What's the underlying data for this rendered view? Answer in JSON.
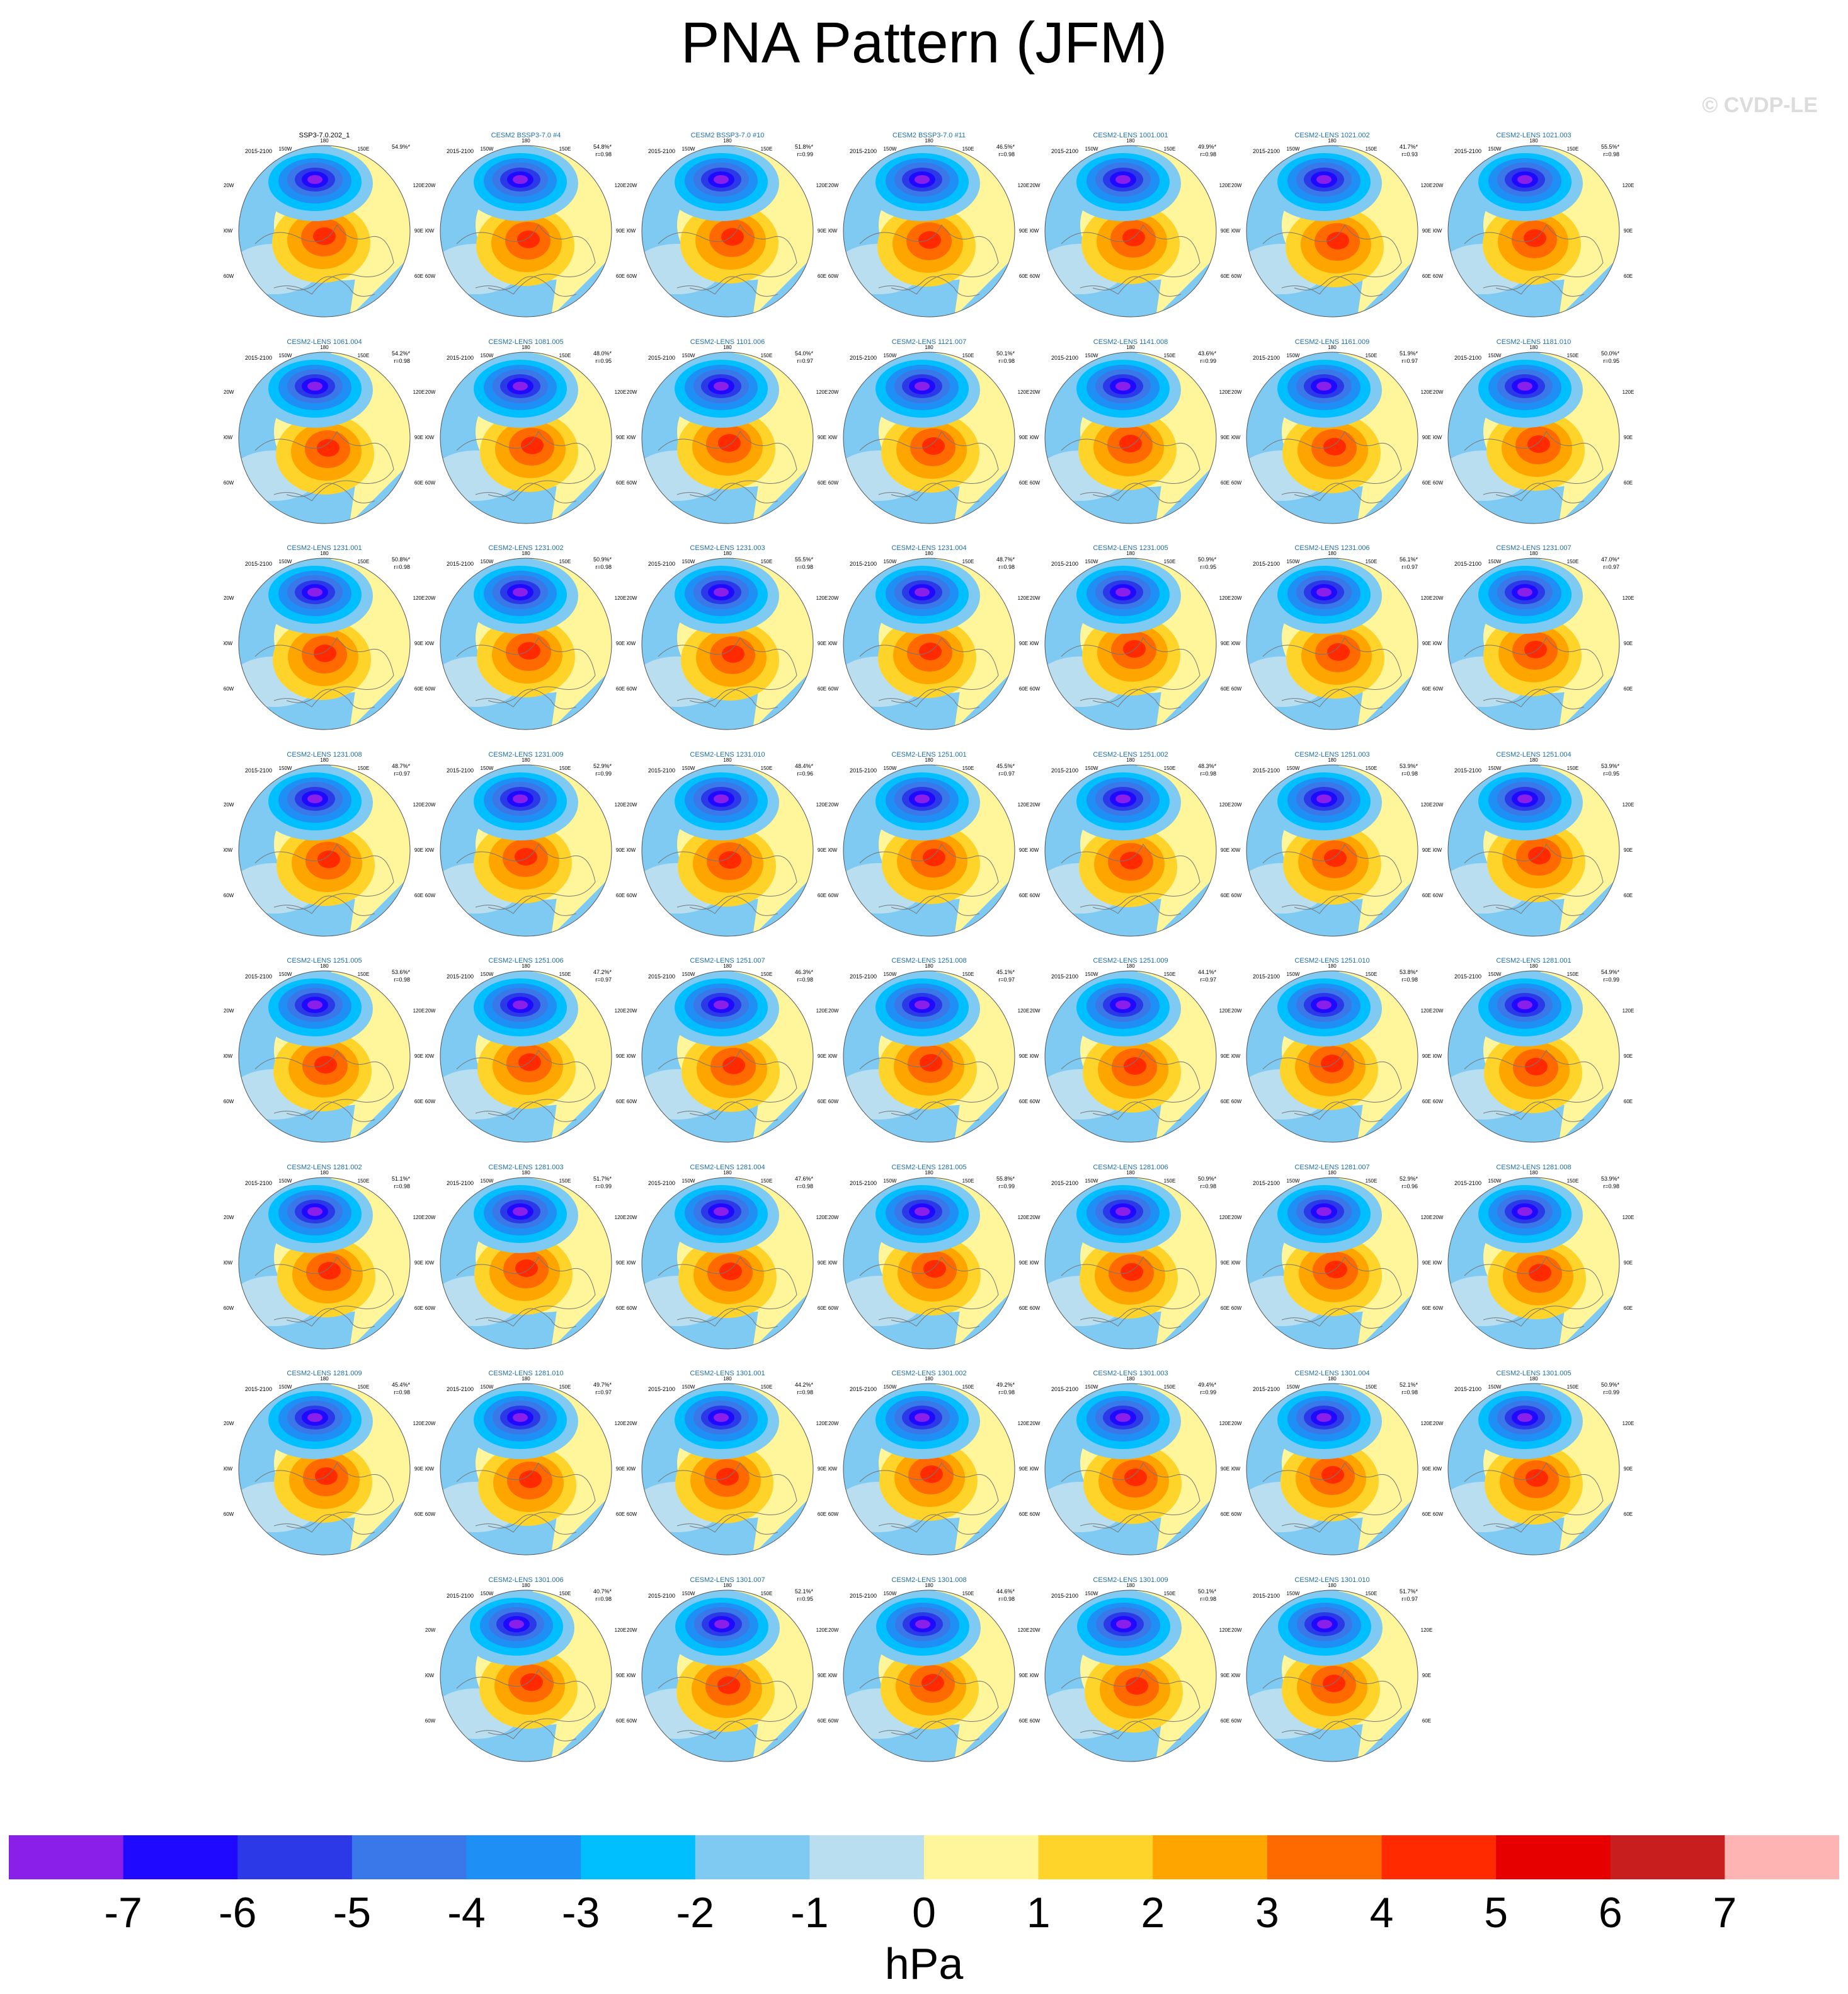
{
  "title": "PNA Pattern (JFM)",
  "watermark": "© CVDP-LE",
  "period": "2015-2100",
  "units": "hPa",
  "colorbar": {
    "ticks": [
      "-7",
      "-6",
      "-5",
      "-4",
      "-3",
      "-2",
      "-1",
      "0",
      "1",
      "2",
      "3",
      "4",
      "5",
      "6",
      "7"
    ],
    "colors": [
      "#8b1fea",
      "#1f0aff",
      "#2b3ae6",
      "#3a77e8",
      "#1e8ff5",
      "#00bfff",
      "#7fcaf2",
      "#b9def0",
      "#fff59a",
      "#ffd42a",
      "#ffa500",
      "#ff6a00",
      "#ff2a00",
      "#e60000",
      "#c81e1e",
      "#ffb4b4"
    ]
  },
  "longitude_labels": [
    "180",
    "150W",
    "150E",
    "120W",
    "120E",
    "90W",
    "90E",
    "60W",
    "60E",
    "30W",
    "30E",
    "0"
  ],
  "panels": [
    {
      "title": "SSP3-7.0.202_1",
      "pct": "54.9%*",
      "r": "",
      "obs": true
    },
    {
      "title": "CESM2 BSSP3-7.0 #4",
      "pct": "54.8%*",
      "r": "r=0.98"
    },
    {
      "title": "CESM2 BSSP3-7.0 #10",
      "pct": "51.8%*",
      "r": "r=0.99"
    },
    {
      "title": "CESM2 BSSP3-7.0 #11",
      "pct": "46.5%*",
      "r": "r=0.98"
    },
    {
      "title": "CESM2-LENS 1001.001",
      "pct": "49.9%*",
      "r": "r=0.98"
    },
    {
      "title": "CESM2-LENS 1021.002",
      "pct": "41.7%*",
      "r": "r=0.93"
    },
    {
      "title": "CESM2-LENS 1021.003",
      "pct": "55.5%*",
      "r": "r=0.98"
    },
    {
      "title": "CESM2-LENS 1061.004",
      "pct": "54.2%*",
      "r": "r=0.98"
    },
    {
      "title": "CESM2-LENS 1081.005",
      "pct": "48.0%*",
      "r": "r=0.95"
    },
    {
      "title": "CESM2-LENS 1101.006",
      "pct": "54.0%*",
      "r": "r=0.97"
    },
    {
      "title": "CESM2-LENS 1121.007",
      "pct": "50.1%*",
      "r": "r=0.98"
    },
    {
      "title": "CESM2-LENS 1141.008",
      "pct": "43.6%*",
      "r": "r=0.99"
    },
    {
      "title": "CESM2-LENS 1161.009",
      "pct": "51.9%*",
      "r": "r=0.97"
    },
    {
      "title": "CESM2-LENS 1181.010",
      "pct": "50.0%*",
      "r": "r=0.95"
    },
    {
      "title": "CESM2-LENS 1231.001",
      "pct": "50.8%*",
      "r": "r=0.98"
    },
    {
      "title": "CESM2-LENS 1231.002",
      "pct": "50.9%*",
      "r": "r=0.98"
    },
    {
      "title": "CESM2-LENS 1231.003",
      "pct": "55.5%*",
      "r": "r=0.98"
    },
    {
      "title": "CESM2-LENS 1231.004",
      "pct": "48.7%*",
      "r": "r=0.98"
    },
    {
      "title": "CESM2-LENS 1231.005",
      "pct": "50.9%*",
      "r": "r=0.95"
    },
    {
      "title": "CESM2-LENS 1231.006",
      "pct": "56.1%*",
      "r": "r=0.97"
    },
    {
      "title": "CESM2-LENS 1231.007",
      "pct": "47.0%*",
      "r": "r=0.97"
    },
    {
      "title": "CESM2-LENS 1231.008",
      "pct": "48.7%*",
      "r": "r=0.97"
    },
    {
      "title": "CESM2-LENS 1231.009",
      "pct": "52.9%*",
      "r": "r=0.99"
    },
    {
      "title": "CESM2-LENS 1231.010",
      "pct": "48.4%*",
      "r": "r=0.96"
    },
    {
      "title": "CESM2-LENS 1251.001",
      "pct": "45.5%*",
      "r": "r=0.97"
    },
    {
      "title": "CESM2-LENS 1251.002",
      "pct": "48.3%*",
      "r": "r=0.98"
    },
    {
      "title": "CESM2-LENS 1251.003",
      "pct": "53.9%*",
      "r": "r=0.98"
    },
    {
      "title": "CESM2-LENS 1251.004",
      "pct": "53.9%*",
      "r": "r=0.95"
    },
    {
      "title": "CESM2-LENS 1251.005",
      "pct": "53.6%*",
      "r": "r=0.98"
    },
    {
      "title": "CESM2-LENS 1251.006",
      "pct": "47.2%*",
      "r": "r=0.97"
    },
    {
      "title": "CESM2-LENS 1251.007",
      "pct": "46.3%*",
      "r": "r=0.98"
    },
    {
      "title": "CESM2-LENS 1251.008",
      "pct": "45.1%*",
      "r": "r=0.97"
    },
    {
      "title": "CESM2-LENS 1251.009",
      "pct": "44.1%*",
      "r": "r=0.97"
    },
    {
      "title": "CESM2-LENS 1251.010",
      "pct": "53.8%*",
      "r": "r=0.98"
    },
    {
      "title": "CESM2-LENS 1281.001",
      "pct": "54.9%*",
      "r": "r=0.99"
    },
    {
      "title": "CESM2-LENS 1281.002",
      "pct": "51.1%*",
      "r": "r=0.98"
    },
    {
      "title": "CESM2-LENS 1281.003",
      "pct": "51.7%*",
      "r": "r=0.99"
    },
    {
      "title": "CESM2-LENS 1281.004",
      "pct": "47.6%*",
      "r": "r=0.98"
    },
    {
      "title": "CESM2-LENS 1281.005",
      "pct": "55.8%*",
      "r": "r=0.99"
    },
    {
      "title": "CESM2-LENS 1281.006",
      "pct": "50.9%*",
      "r": "r=0.98"
    },
    {
      "title": "CESM2-LENS 1281.007",
      "pct": "52.9%*",
      "r": "r=0.96"
    },
    {
      "title": "CESM2-LENS 1281.008",
      "pct": "53.9%*",
      "r": "r=0.98"
    },
    {
      "title": "CESM2-LENS 1281.009",
      "pct": "45.4%*",
      "r": "r=0.98"
    },
    {
      "title": "CESM2-LENS 1281.010",
      "pct": "49.7%*",
      "r": "r=0.97"
    },
    {
      "title": "CESM2-LENS 1301.001",
      "pct": "44.2%*",
      "r": "r=0.98"
    },
    {
      "title": "CESM2-LENS 1301.002",
      "pct": "49.2%*",
      "r": "r=0.98"
    },
    {
      "title": "CESM2-LENS 1301.003",
      "pct": "49.4%*",
      "r": "r=0.99"
    },
    {
      "title": "CESM2-LENS 1301.004",
      "pct": "52.1%*",
      "r": "r=0.98"
    },
    {
      "title": "CESM2-LENS 1301.005",
      "pct": "50.9%*",
      "r": "r=0.99"
    },
    {
      "title": "CESM2-LENS 1301.006",
      "pct": "40.7%*",
      "r": "r=0.98"
    },
    {
      "title": "CESM2-LENS 1301.007",
      "pct": "52.1%*",
      "r": "r=0.95"
    },
    {
      "title": "CESM2-LENS 1301.008",
      "pct": "44.6%*",
      "r": "r=0.98"
    },
    {
      "title": "CESM2-LENS 1301.009",
      "pct": "50.1%*",
      "r": "r=0.98"
    },
    {
      "title": "CESM2-LENS 1301.010",
      "pct": "51.7%*",
      "r": "r=0.97"
    }
  ]
}
